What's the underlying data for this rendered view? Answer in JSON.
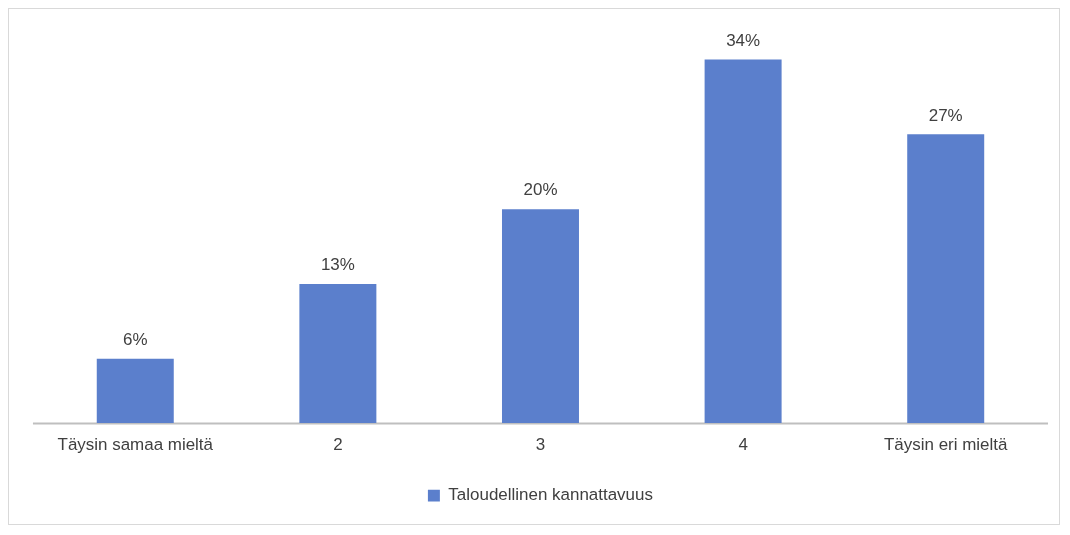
{
  "chart_data": {
    "type": "bar",
    "categories": [
      "Täysin samaa mieltä",
      "2",
      "3",
      "4",
      "Täysin eri mieltä"
    ],
    "series": [
      {
        "name": "Taloudellinen kannattavuus",
        "color": "#5b7fcc",
        "values": [
          6,
          13,
          20,
          34,
          27
        ],
        "value_labels": [
          "6%",
          "13%",
          "20%",
          "34%",
          "27%"
        ]
      }
    ],
    "legend": "bottom",
    "grid": false
  }
}
